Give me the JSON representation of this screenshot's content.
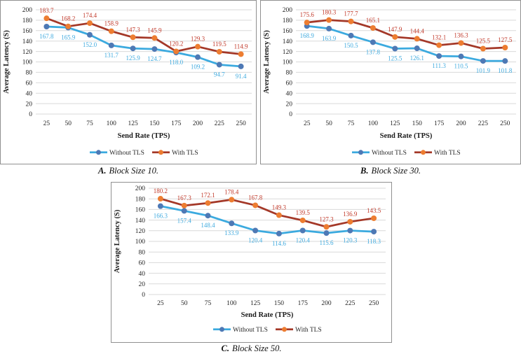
{
  "colors": {
    "background": "#ffffff",
    "panel_border": "#909090",
    "gridline": "#d9d9d9",
    "tick_text": "#262626",
    "axis_title_text": "#1a1a1a",
    "without_tls_line": "#3baadf",
    "without_tls_marker": "#4e79b5",
    "without_tls_label": "#41abdf",
    "with_tls_line": "#a43828",
    "with_tls_marker": "#ed7d31",
    "with_tls_label": "#c13a2b"
  },
  "legend": {
    "without_tls_label": "Without TLS",
    "with_tls_label": "With TLS"
  },
  "chart_data": [
    {
      "id": "A",
      "type": "line",
      "title": "",
      "xlabel": "Send Rate (TPS)",
      "ylabel": "Average Latency (S)",
      "ylim": [
        0,
        200
      ],
      "ystep": 20,
      "grid": "horizontal",
      "legend_position": "bottom",
      "categories": [
        25,
        50,
        75,
        100,
        125,
        150,
        175,
        200,
        225,
        250
      ],
      "series": [
        {
          "name": "Without TLS",
          "values": [
            167.8,
            165.9,
            152.0,
            131.7,
            125.9,
            124.7,
            118.0,
            109.2,
            94.7,
            91.4
          ]
        },
        {
          "name": "With TLS",
          "values": [
            183.7,
            168.2,
            174.4,
            158.9,
            147.3,
            145.9,
            120.2,
            129.3,
            119.5,
            114.9
          ]
        }
      ],
      "caption": {
        "letter": "A.",
        "text": "Block Size 10."
      }
    },
    {
      "id": "B",
      "type": "line",
      "title": "",
      "xlabel": "Send Rate (TPS)",
      "ylabel": "Average Latency (S)",
      "ylim": [
        0,
        200
      ],
      "ystep": 20,
      "grid": "horizontal",
      "legend_position": "bottom",
      "categories": [
        25,
        50,
        75,
        100,
        125,
        150,
        175,
        200,
        225,
        250
      ],
      "series": [
        {
          "name": "Without TLS",
          "values": [
            168.9,
            163.9,
            150.5,
            137.8,
            125.5,
            126.1,
            111.3,
            110.5,
            101.9,
            101.8
          ]
        },
        {
          "name": "With TLS",
          "values": [
            175.6,
            180.3,
            177.7,
            165.1,
            147.9,
            144.4,
            132.1,
            136.3,
            125.5,
            127.5
          ]
        }
      ],
      "caption": {
        "letter": "B.",
        "text": "Block Size 30."
      }
    },
    {
      "id": "C",
      "type": "line",
      "title": "",
      "xlabel": "Send Rate (TPS)",
      "ylabel": "Average Latency (S)",
      "ylim": [
        0,
        200
      ],
      "ystep": 20,
      "grid": "horizontal",
      "legend_position": "bottom",
      "categories": [
        25,
        50,
        75,
        100,
        125,
        150,
        175,
        200,
        225,
        250
      ],
      "series": [
        {
          "name": "Without TLS",
          "values": [
            166.3,
            157.4,
            148.4,
            133.9,
            120.4,
            114.6,
            120.4,
            115.6,
            120.3,
            118.3
          ]
        },
        {
          "name": "With TLS",
          "values": [
            180.2,
            167.3,
            172.1,
            178.4,
            167.8,
            149.3,
            139.5,
            127.3,
            136.9,
            143.5
          ]
        }
      ],
      "caption": {
        "letter": "C.",
        "text": "Block Size 50."
      }
    }
  ]
}
